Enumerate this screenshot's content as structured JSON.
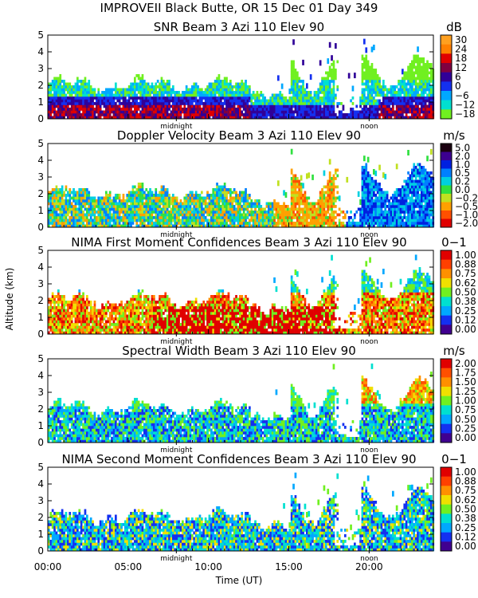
{
  "header": {
    "title": "IMPROVEII  Black Butte, OR  15 Dec 01 Day 349"
  },
  "x_axis": {
    "label": "Time (UT)",
    "ticks": [
      "00:00",
      "05:00",
      "10:00",
      "15:00",
      "20:00"
    ],
    "tick_values": [
      0,
      5,
      10,
      15,
      20
    ],
    "range": [
      0,
      24
    ],
    "markers": [
      {
        "label": "midnight",
        "value": 8
      },
      {
        "label": "noon",
        "value": 20
      }
    ]
  },
  "y_axis": {
    "label": "Altitude (km)",
    "ticks": [
      "0",
      "1",
      "2",
      "3",
      "4",
      "5"
    ],
    "range": [
      0,
      5
    ]
  },
  "chart_data": [
    {
      "type": "heatmap",
      "title": "SNR Beam 3 Azi 110 Elev 90",
      "unit": "dB",
      "colorbar_labels": [
        "30",
        "24",
        "18",
        "12",
        "6",
        "0",
        "−6",
        "−12",
        "−18"
      ],
      "colorbar_colors": [
        "#ffa020",
        "#ff8000",
        "#e00000",
        "#800040",
        "#300098",
        "#1430f0",
        "#00a8ff",
        "#00e0d0",
        "#70f020"
      ],
      "pattern": "snr"
    },
    {
      "type": "heatmap",
      "title": "Doppler Velocity Beam 3 Azi 110 Elev 90",
      "unit": "m/s",
      "colorbar_labels": [
        "5.0",
        "2.0",
        "1.0",
        "0.5",
        "0.2",
        "0.0",
        "−0.2",
        "−0.5",
        "−1.0",
        "−2.0"
      ],
      "colorbar_colors": [
        "#1a0010",
        "#3c0090",
        "#0020e0",
        "#0080ff",
        "#00d0e0",
        "#30e040",
        "#c0e020",
        "#ffa000",
        "#ff5000",
        "#e00000"
      ],
      "pattern": "vel"
    },
    {
      "type": "heatmap",
      "title": "NIMA First Moment Confidences Beam 3 Azi 110 Elev 90",
      "unit": "0−1",
      "colorbar_labels": [
        "1.00",
        "0.88",
        "0.75",
        "0.62",
        "0.50",
        "0.38",
        "0.25",
        "0.12",
        "0.00"
      ],
      "colorbar_colors": [
        "#e00000",
        "#ff4000",
        "#ff9000",
        "#f0e000",
        "#70f020",
        "#00e0d0",
        "#00a8ff",
        "#1430f0",
        "#400090"
      ],
      "pattern": "conf1"
    },
    {
      "type": "heatmap",
      "title": "Spectral Width Beam 3 Azi 110 Elev 90",
      "unit": "m/s",
      "colorbar_labels": [
        "2.00",
        "1.75",
        "1.50",
        "1.25",
        "1.00",
        "0.75",
        "0.50",
        "0.25",
        "0.00"
      ],
      "colorbar_colors": [
        "#e00000",
        "#ff5000",
        "#ff9000",
        "#f0e000",
        "#70f020",
        "#00e0d0",
        "#00a8ff",
        "#1430f0",
        "#400090"
      ],
      "pattern": "sw"
    },
    {
      "type": "heatmap",
      "title": "NIMA Second Moment Confidences Beam 3 Azi 110 Elev 90",
      "unit": "0−1",
      "colorbar_labels": [
        "1.00",
        "0.88",
        "0.75",
        "0.62",
        "0.50",
        "0.38",
        "0.25",
        "0.12",
        "0.00"
      ],
      "colorbar_colors": [
        "#e00000",
        "#ff4000",
        "#ff9000",
        "#f0e000",
        "#70f020",
        "#00e0d0",
        "#00a8ff",
        "#1430f0",
        "#400090"
      ],
      "pattern": "conf2"
    }
  ]
}
